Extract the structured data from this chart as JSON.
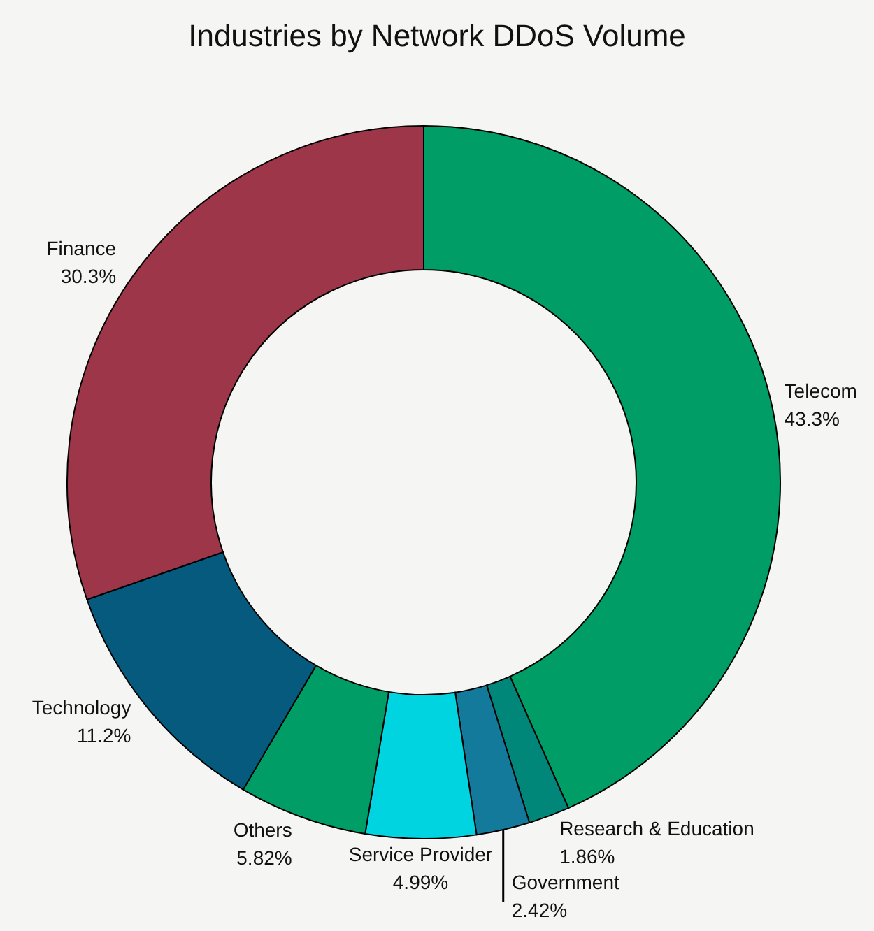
{
  "chart_data": {
    "type": "donut",
    "title": "Industries by Network DDoS Volume",
    "categories": [
      "Telecom",
      "Research & Education",
      "Government",
      "Service Provider",
      "Others",
      "Technology",
      "Finance"
    ],
    "values": [
      43.3,
      1.86,
      2.42,
      4.99,
      5.82,
      11.2,
      30.3
    ],
    "colors": [
      "#009e66",
      "#00877a",
      "#137a9b",
      "#00d4e0",
      "#009e66",
      "#065a7e",
      "#9e3649"
    ],
    "value_labels": [
      "43.3%",
      "1.86%",
      "2.42%",
      "4.99%",
      "5.82%",
      "11.2%",
      "30.3%"
    ]
  }
}
